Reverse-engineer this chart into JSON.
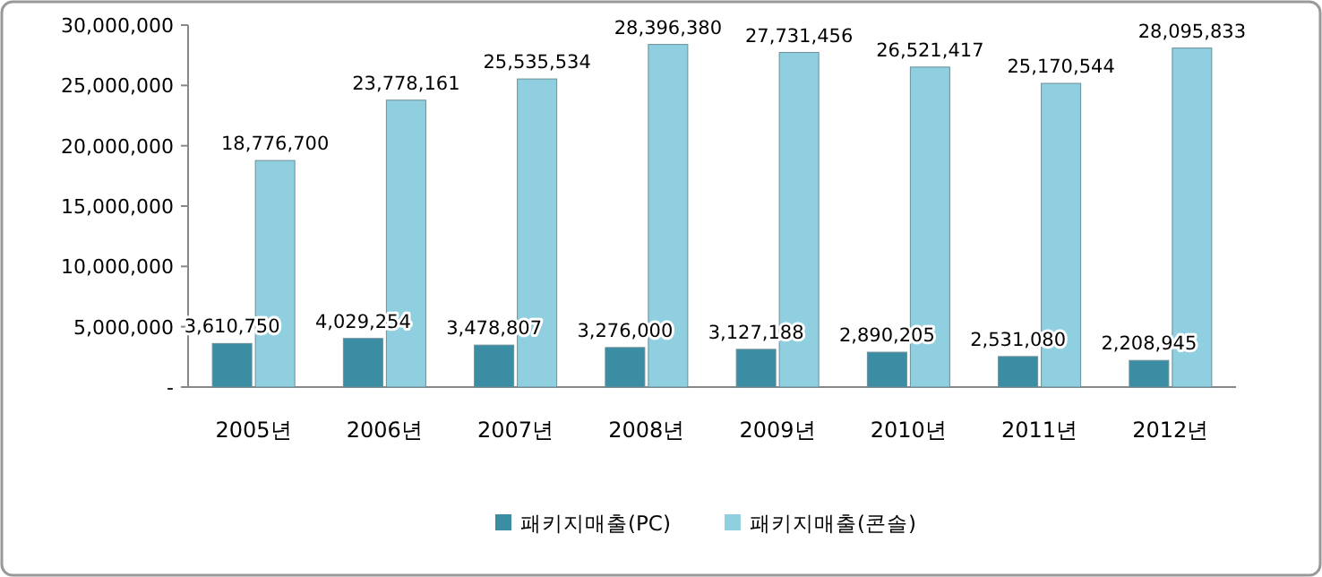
{
  "chart_data": {
    "type": "bar",
    "categories": [
      "2005년",
      "2006년",
      "2007년",
      "2008년",
      "2009년",
      "2010년",
      "2011년",
      "2012년"
    ],
    "series": [
      {
        "name": "패키지매출(PC)",
        "color": "#3b8da3",
        "values": [
          3610750,
          4029254,
          3478807,
          3276000,
          3127188,
          2890205,
          2531080,
          2208945
        ],
        "value_labels": [
          "3,610,750",
          "4,029,254",
          "3,478,807",
          "3,276,000",
          "3,127,188",
          "2,890,205",
          "2,531,080",
          "2,208,945"
        ]
      },
      {
        "name": "패키지매출(콘솔)",
        "color": "#8fcfe0",
        "values": [
          18776700,
          23778161,
          25535534,
          28396380,
          27731456,
          26521417,
          25170544,
          28095833
        ],
        "value_labels": [
          "18,776,700",
          "23,778,161",
          "25,535,534",
          "28,396,380",
          "27,731,456",
          "26,521,417",
          "25,170,544",
          "28,095,833"
        ]
      }
    ],
    "ylim": [
      0,
      30000000
    ],
    "yticks": [
      {
        "value": 0,
        "label": "-"
      },
      {
        "value": 5000000,
        "label": "5,000,000"
      },
      {
        "value": 10000000,
        "label": "10,000,000"
      },
      {
        "value": 15000000,
        "label": "15,000,000"
      },
      {
        "value": 20000000,
        "label": "20,000,000"
      },
      {
        "value": 25000000,
        "label": "25,000,000"
      },
      {
        "value": 30000000,
        "label": "30,000,000"
      }
    ],
    "grid": false,
    "legend": "bottom"
  }
}
